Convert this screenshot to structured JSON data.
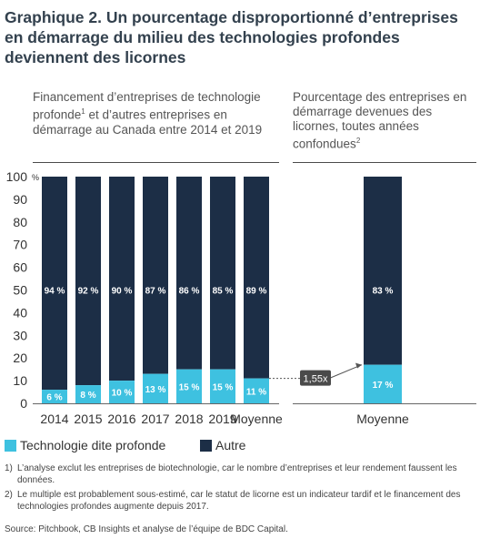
{
  "title": "Graphique 2. Un pourcentage disproportionné d’entreprises en démarrage du milieu des technologies profondes deviennent des licornes",
  "left_subtitle": {
    "part1": "Financement d’entreprises de technologie profonde",
    "sup": "1",
    "part2": " et d’autres entreprises en démarrage au Canada entre 2014 et 2019"
  },
  "right_subtitle": {
    "text": "Pourcentage des entreprises en démarrage devenues des licornes, toutes années confondues",
    "sup": "2"
  },
  "colors": {
    "deep_tech": "#3ec1e0",
    "other": "#1c2e46",
    "label_deep": "#ffffff",
    "label_other": "#ffffff"
  },
  "chart_data": [
    {
      "type": "bar",
      "stacked": true,
      "percent_unit": "%",
      "ylim": [
        0,
        100
      ],
      "yticks": [
        0,
        10,
        20,
        30,
        40,
        50,
        60,
        70,
        80,
        90,
        100
      ],
      "categories": [
        "2014",
        "2015",
        "2016",
        "2017",
        "2018",
        "2019",
        "Moyenne"
      ],
      "series": [
        {
          "name": "Technologie dite profonde",
          "values": [
            6,
            8,
            10,
            13,
            15,
            15,
            11
          ],
          "labels": [
            "6 %",
            "8 %",
            "10 %",
            "13 %",
            "15 %",
            "15 %",
            "11 %"
          ]
        },
        {
          "name": "Autre",
          "values": [
            94,
            92,
            90,
            87,
            86,
            85,
            89
          ],
          "labels": [
            "94 %",
            "92 %",
            "90 %",
            "87 %",
            "86 %",
            "85 %",
            "89 %"
          ]
        }
      ]
    },
    {
      "type": "bar",
      "stacked": true,
      "ylim": [
        0,
        100
      ],
      "categories": [
        "Moyenne"
      ],
      "series": [
        {
          "name": "Technologie dite profonde",
          "values": [
            17
          ],
          "labels": [
            "17 %"
          ]
        },
        {
          "name": "Autre",
          "values": [
            83
          ],
          "labels": [
            "83 %"
          ]
        }
      ],
      "annotation": "1,55x"
    }
  ],
  "legend": {
    "deep_tech": "Technologie dite profonde",
    "other": "Autre"
  },
  "notes": [
    {
      "num": "1)",
      "text": "L’analyse exclut les entreprises de biotechnologie, car le nombre d’entreprises et leur rendement faussent les données."
    },
    {
      "num": "2)",
      "text": "Le multiple est probablement sous-estimé, car le statut de licorne est un indicateur tardif et le financement des technologies profondes augmente depuis 2017."
    }
  ],
  "source": "Source: Pitchbook, CB Insights et analyse de l’équipe de BDC Capital."
}
